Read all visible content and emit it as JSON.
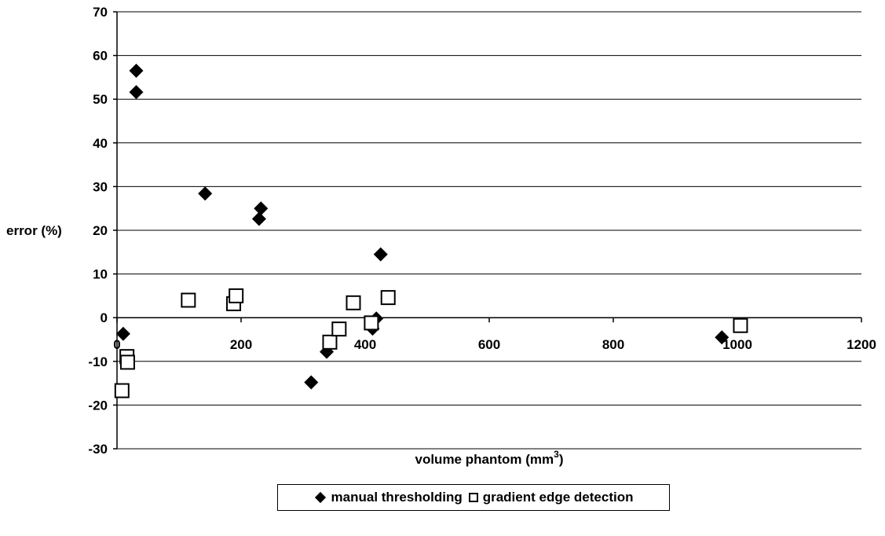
{
  "chart_data": {
    "type": "scatter",
    "title": "",
    "xlabel": "volume phantom (mm",
    "xlabel_sup": "3",
    "xlabel_close": ")",
    "ylabel": "error (%)",
    "xlim": [
      0,
      1200
    ],
    "ylim": [
      -30,
      70
    ],
    "x_ticks": [
      "0",
      "200",
      "400",
      "600",
      "800",
      "1000",
      "1200"
    ],
    "y_ticks": [
      "70",
      "60",
      "50",
      "40",
      "30",
      "20",
      "10",
      "0",
      "-10",
      "-20",
      "-30"
    ],
    "grid": "horizontal",
    "legend_position": "bottom",
    "series": [
      {
        "name": "manual thresholding",
        "marker": "filled-diamond",
        "color": "#000000",
        "points": [
          [
            10,
            -3.7
          ],
          [
            31,
            56.5
          ],
          [
            31,
            51.6
          ],
          [
            142,
            28.4
          ],
          [
            229,
            22.6
          ],
          [
            232,
            25.0
          ],
          [
            313,
            -14.8
          ],
          [
            338,
            -7.8
          ],
          [
            412,
            -2.5
          ],
          [
            418,
            -0.2
          ],
          [
            425,
            14.5
          ],
          [
            975,
            -4.5
          ]
        ]
      },
      {
        "name": "gradient edge detection",
        "marker": "open-square",
        "color": "#000000",
        "points": [
          [
            8,
            -16.7
          ],
          [
            16,
            -8.9
          ],
          [
            17,
            -10.2
          ],
          [
            115,
            4.0
          ],
          [
            188,
            3.2
          ],
          [
            192,
            5.0
          ],
          [
            343,
            -5.6
          ],
          [
            358,
            -2.6
          ],
          [
            381,
            3.4
          ],
          [
            410,
            -1.2
          ],
          [
            437,
            4.6
          ],
          [
            1005,
            -1.8
          ]
        ]
      }
    ]
  }
}
